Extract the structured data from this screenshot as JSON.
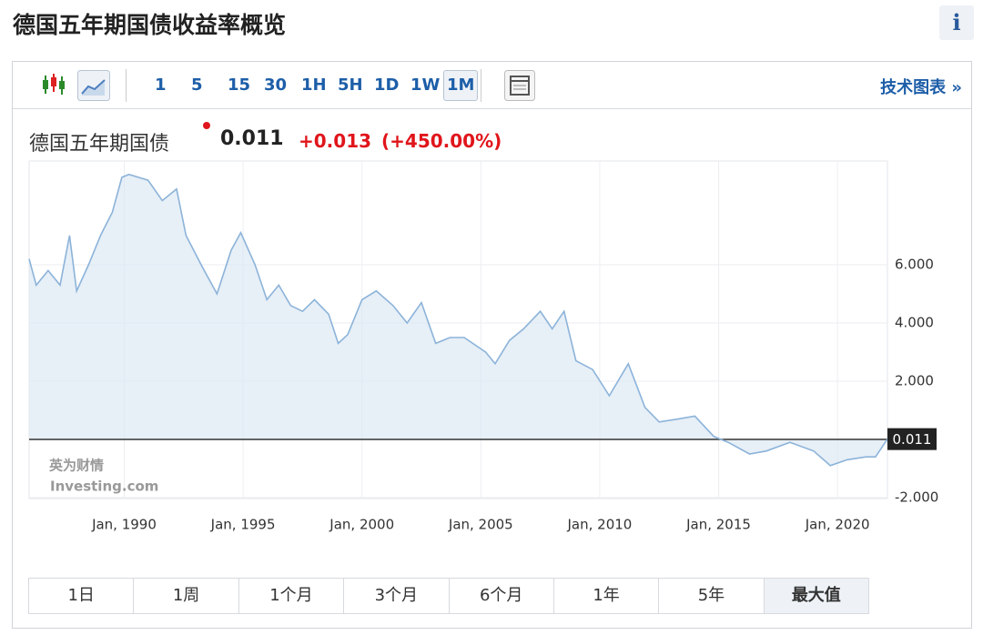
{
  "header": {
    "title": "德国五年期国债收益率概览",
    "info": "i"
  },
  "toolbar": {
    "intervals": [
      "1",
      "5",
      "15",
      "30",
      "1H",
      "5H",
      "1D",
      "1W",
      "1M"
    ],
    "tech_chart": "技术图表 »"
  },
  "quote": {
    "last": "0.011",
    "change": "+0.013",
    "change_percent": "(+450.00%)"
  },
  "watermark": {
    "brand": "英为财情",
    "site": "Investing.com"
  },
  "ranges": [
    "1日",
    "1周",
    "1个月",
    "3个月",
    "6个月",
    "1年",
    "5年",
    "最大值"
  ],
  "chart_data": {
    "type": "line",
    "grid": true,
    "x": [
      1986.0,
      1986.3,
      1986.8,
      1987.3,
      1987.7,
      1988.0,
      1988.5,
      1989.0,
      1989.5,
      1989.9,
      1990.2,
      1991.0,
      1991.6,
      1992.2,
      1992.6,
      1993.3,
      1993.9,
      1994.5,
      1994.9,
      1995.5,
      1996.0,
      1996.5,
      1997.0,
      1997.5,
      1998.0,
      1998.6,
      1999.0,
      1999.4,
      2000.0,
      2000.6,
      2001.3,
      2001.9,
      2002.5,
      2003.1,
      2003.7,
      2004.3,
      2005.2,
      2005.6,
      2006.2,
      2006.8,
      2007.5,
      2008.0,
      2008.5,
      2009.0,
      2009.7,
      2010.4,
      2011.2,
      2011.9,
      2012.5,
      2013.3,
      2014.0,
      2014.8,
      2015.4,
      2016.3,
      2017.0,
      2018.0,
      2019.0,
      2019.7,
      2020.4,
      2021.2,
      2021.6,
      2022.1
    ],
    "series": [
      {
        "name": "德国五年期国债",
        "color": "#8cb3d9",
        "values": [
          6.2,
          5.3,
          5.8,
          5.3,
          7.0,
          5.1,
          6.0,
          7.0,
          7.8,
          9.0,
          9.1,
          8.9,
          8.2,
          8.6,
          7.0,
          5.9,
          5.0,
          6.5,
          7.1,
          6.0,
          4.8,
          5.3,
          4.6,
          4.4,
          4.8,
          4.3,
          3.3,
          3.6,
          4.8,
          5.1,
          4.6,
          4.0,
          4.7,
          3.3,
          3.5,
          3.5,
          3.0,
          2.6,
          3.4,
          3.8,
          4.4,
          3.8,
          4.4,
          2.7,
          2.4,
          1.5,
          2.6,
          1.1,
          0.6,
          0.7,
          0.8,
          0.1,
          -0.1,
          -0.5,
          -0.4,
          -0.1,
          -0.4,
          -0.9,
          -0.7,
          -0.6,
          -0.6,
          0.011
        ]
      }
    ],
    "xlim": [
      1986.0,
      2022.1
    ],
    "xticks": [
      {
        "value": 1990,
        "label": "Jan, 1990"
      },
      {
        "value": 1995,
        "label": "Jan, 1995"
      },
      {
        "value": 2000,
        "label": "Jan, 2000"
      },
      {
        "value": 2005,
        "label": "Jan, 2005"
      },
      {
        "value": 2010,
        "label": "Jan, 2010"
      },
      {
        "value": 2015,
        "label": "Jan, 2015"
      },
      {
        "value": 2020,
        "label": "Jan, 2020"
      }
    ],
    "ylim": [
      -2.03,
      9.56
    ],
    "yticks": [
      {
        "value": -2,
        "label": "-2.000"
      },
      {
        "value": 2,
        "label": "2.000"
      },
      {
        "value": 4,
        "label": "4.000"
      },
      {
        "value": 6,
        "label": "6.000"
      }
    ]
  }
}
